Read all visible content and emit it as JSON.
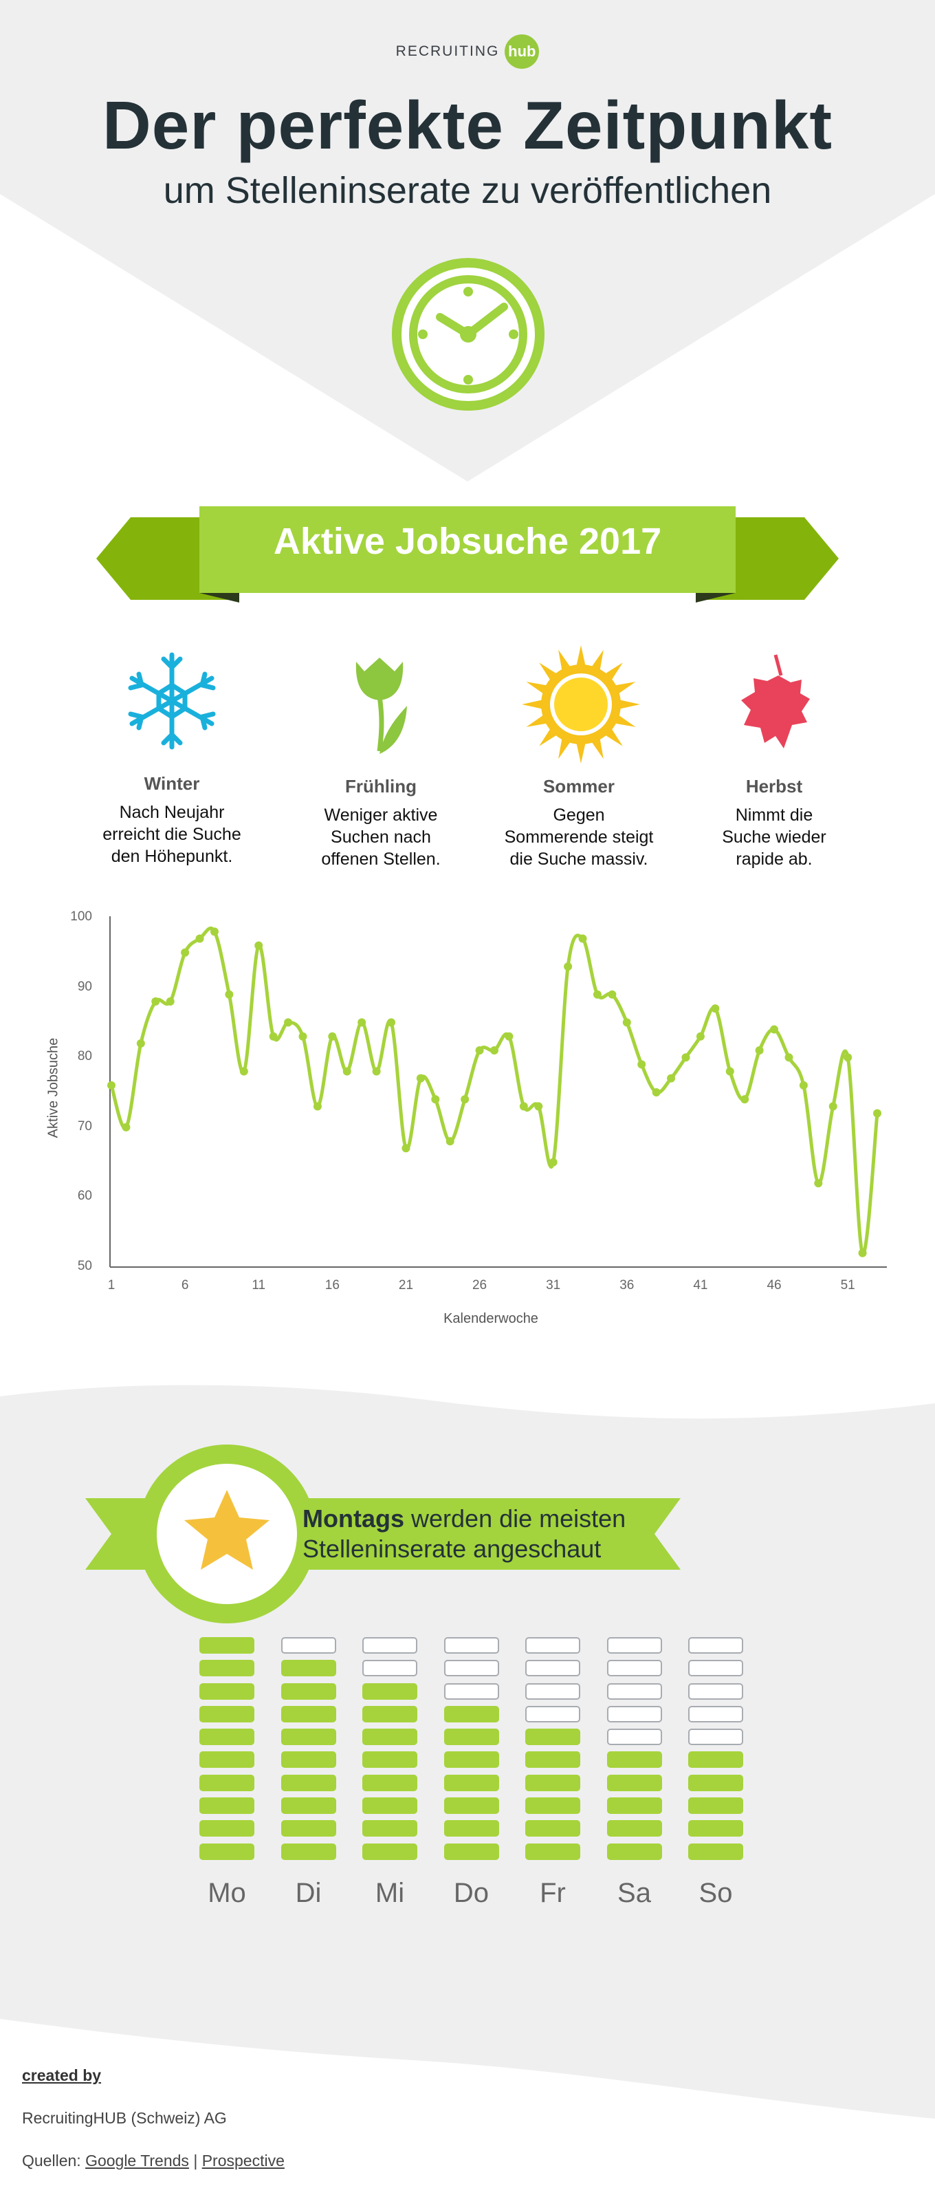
{
  "header": {
    "brand_text": "RECRUITING",
    "brand_badge": "hub",
    "title": "Der perfekte Zeitpunkt",
    "subtitle": "um Stelleninserate zu veröffentlichen"
  },
  "section1": {
    "ribbon_title": "Aktive Jobsuche 2017"
  },
  "seasons": [
    {
      "name": "Winter",
      "desc": [
        "Nach Neujahr",
        "erreicht die Suche",
        "den Höhepunkt."
      ],
      "icon": "snowflake-icon",
      "color": "#1ab0dc"
    },
    {
      "name": "Frühling",
      "desc": [
        "Weniger aktive",
        "Suchen nach",
        "offenen Stellen."
      ],
      "icon": "tulip-icon",
      "color": "#8dc63f"
    },
    {
      "name": "Sommer",
      "desc": [
        "Gegen",
        "Sommerende steigt",
        "die Suche massiv."
      ],
      "icon": "sun-icon",
      "color": "#f6c21b"
    },
    {
      "name": "Herbst",
      "desc": [
        "Nimmt die",
        "Suche wieder",
        "rapide ab."
      ],
      "icon": "leaf-icon",
      "color": "#e8435a"
    }
  ],
  "chart_data": {
    "type": "line",
    "xlabel": "Kalenderwoche",
    "ylabel": "Aktive Jobsuche",
    "ylim": [
      50,
      100
    ],
    "xlim": [
      1,
      53
    ],
    "yticks": [
      50,
      60,
      70,
      80,
      90,
      100
    ],
    "xticks": [
      1,
      6,
      11,
      16,
      21,
      26,
      31,
      36,
      41,
      46,
      51
    ],
    "grid": false,
    "line_color": "#a6d33b",
    "x": [
      1,
      2,
      3,
      4,
      5,
      6,
      7,
      8,
      9,
      10,
      11,
      12,
      13,
      14,
      15,
      16,
      17,
      18,
      19,
      20,
      21,
      22,
      23,
      24,
      25,
      26,
      27,
      28,
      29,
      30,
      31,
      32,
      33,
      34,
      35,
      36,
      37,
      38,
      39,
      40,
      41,
      42,
      43,
      44,
      45,
      46,
      47,
      48,
      49,
      50,
      51,
      52,
      53
    ],
    "values": [
      76,
      70,
      82,
      88,
      88,
      95,
      97,
      98,
      89,
      78,
      96,
      83,
      85,
      83,
      73,
      83,
      78,
      85,
      78,
      85,
      67,
      77,
      74,
      68,
      74,
      81,
      81,
      83,
      73,
      73,
      65,
      93,
      97,
      89,
      89,
      85,
      79,
      75,
      77,
      80,
      83,
      87,
      78,
      74,
      81,
      84,
      80,
      76,
      62,
      73,
      80,
      52,
      72
    ]
  },
  "section2": {
    "ribbon_bold": "Montags",
    "ribbon_line1": "werden die meisten",
    "ribbon_line2": "Stelleninserate angeschaut",
    "icon": "star-icon",
    "star_color": "#f5c13d",
    "bar_color": "#a6d33b"
  },
  "days": [
    {
      "label": "Mo",
      "level": 10
    },
    {
      "label": "Di",
      "level": 9
    },
    {
      "label": "Mi",
      "level": 8
    },
    {
      "label": "Do",
      "level": 7
    },
    {
      "label": "Fr",
      "level": 6
    },
    {
      "label": "Sa",
      "level": 5
    },
    {
      "label": "So",
      "level": 5
    }
  ],
  "days_total_levels": 10,
  "footer": {
    "created_by": "created by",
    "company": "RecruitingHUB (Schweiz) AG",
    "sources_label": "Quellen:",
    "source1": "Google Trends",
    "separator": "|",
    "source2": "Prospective"
  }
}
